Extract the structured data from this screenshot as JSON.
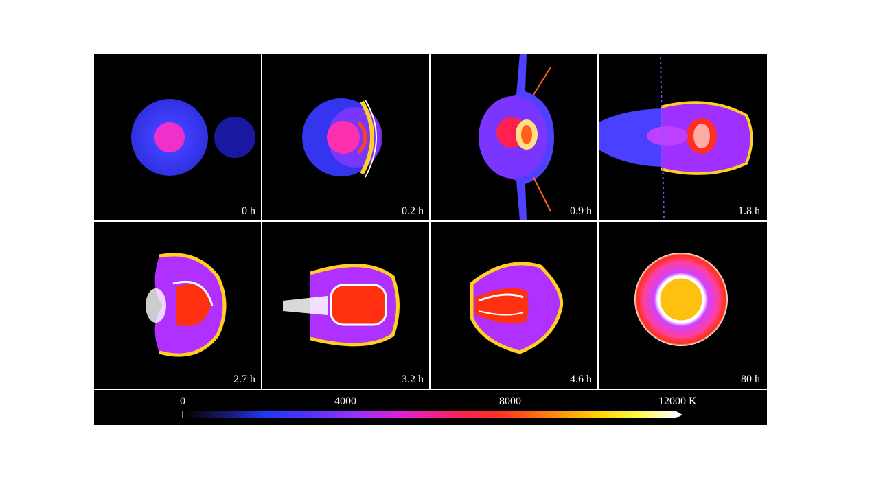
{
  "panels": [
    {
      "label": "0 h"
    },
    {
      "label": "0.2 h"
    },
    {
      "label": "0.9 h"
    },
    {
      "label": "1.8 h"
    },
    {
      "label": "2.7 h"
    },
    {
      "label": "3.2 h"
    },
    {
      "label": "4.6 h"
    },
    {
      "label": "80 h"
    }
  ],
  "colorbar": {
    "ticks": [
      "0",
      "4000",
      "8000",
      "12000 K"
    ]
  },
  "colors": {
    "background": "#000000",
    "divider": "#ffffff",
    "low": "#2038ff",
    "mid": "#e020d0",
    "high": "#ff3020",
    "peak": "#ffffff"
  }
}
